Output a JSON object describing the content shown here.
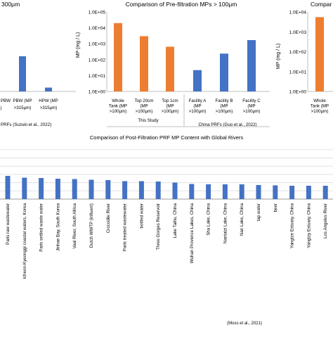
{
  "chart_data": [
    {
      "type": "bar",
      "title": "300μm",
      "categories": [
        "PBW (MP >315μm)",
        "HPW (MP >315μm)"
      ],
      "category_labels": [
        [
          "PBW (MP",
          ">315μm)"
        ],
        [
          "HPW (MP",
          ">315μm)"
        ]
      ],
      "leading_label_fragment": [
        "PBW",
        "j"
      ],
      "values": [
        2000,
        220
      ],
      "bar_color": "#4472c4",
      "group_label": "PRFs (Suzuki et al., 2022)"
    },
    {
      "type": "bar",
      "title": "Comparison of Pre-filtration MPs > 100μm",
      "ylabel": "MP (mg / L)",
      "yscale": "log",
      "ylim": [
        1,
        100000
      ],
      "y_ticks": [
        "1.0E+00",
        "1.0E+01",
        "1.0E+02",
        "1.0E+03",
        "1.0E+04",
        "1.0E+05"
      ],
      "categories": [
        "Whole Tank (MP >100μm)",
        "Top 20cm (MP >100μm)",
        "Top 1cm (MP >100μm)",
        "Facility A (MP >100μm)",
        "Facility B (MP >100μm)",
        "Facility C (MP >100μm)"
      ],
      "category_labels": [
        [
          "Whole",
          "Tank (MP",
          ">100μm)"
        ],
        [
          "Top 20cm",
          "(MP",
          ">100μm)"
        ],
        [
          "Top 1cm",
          "(MP",
          ">100μm)"
        ],
        [
          "Facility A",
          "(MP",
          ">100μm)"
        ],
        [
          "Facility B",
          "(MP",
          ">100μm)"
        ],
        [
          "Facility C",
          "(MP",
          ">100μm)"
        ]
      ],
      "values": [
        20000,
        3000,
        650,
        22,
        240,
        1700
      ],
      "colors": [
        "#ed7d31",
        "#ed7d31",
        "#ed7d31",
        "#4472c4",
        "#4472c4",
        "#4472c4"
      ],
      "groups": [
        "This Study",
        "China PRFs (Guo et al., 2022)"
      ]
    },
    {
      "type": "bar",
      "title": "Compar",
      "ylabel": "MP (mg / L)",
      "yscale": "log",
      "ylim": [
        1,
        10000
      ],
      "y_ticks": [
        "1.0E+00",
        "1.0E+01",
        "1.0E+02",
        "1.0E+03",
        "1.0E+04"
      ],
      "categories": [
        "Whole Tank (MP >100μm)"
      ],
      "category_labels": [
        [
          "Whole",
          "Tank (MP",
          ">100μm)"
        ]
      ],
      "values": [
        5500
      ],
      "colors": [
        "#ed7d31"
      ]
    },
    {
      "type": "bar",
      "title": "Comparison of Post-Filtration PRF MP Content with Global Rivers",
      "categories": [
        "Paris raw wastewater",
        "Icheon-Kyeonggi coastal waters, Korea",
        "Paris settled waste water",
        "Jinhae Bay, South Korea",
        "Vaal River, South Africa",
        "Dutch WWTP (influent)",
        "Crocodile River",
        "Paris treated wastewater",
        "bottled water",
        "Three Gorges Reservoir",
        "Lake Taihu, China",
        "Wuhan Provence Lakes, China",
        "Sha Lake, China",
        "Nantaizi Lake, China",
        "Nan Lake, China",
        "tap water",
        "beer",
        "Yangtze Estuary, China",
        "Yangtzy Estuary, China",
        "Los Angeles River"
      ],
      "values": [
        66,
        61,
        60,
        58,
        57,
        55,
        54,
        51,
        51,
        50,
        47,
        43,
        42,
        42,
        42,
        40,
        39,
        38,
        38,
        38
      ],
      "bar_color": "#4472c4",
      "grid": true,
      "source": "(Moss et al., 2021)"
    }
  ]
}
